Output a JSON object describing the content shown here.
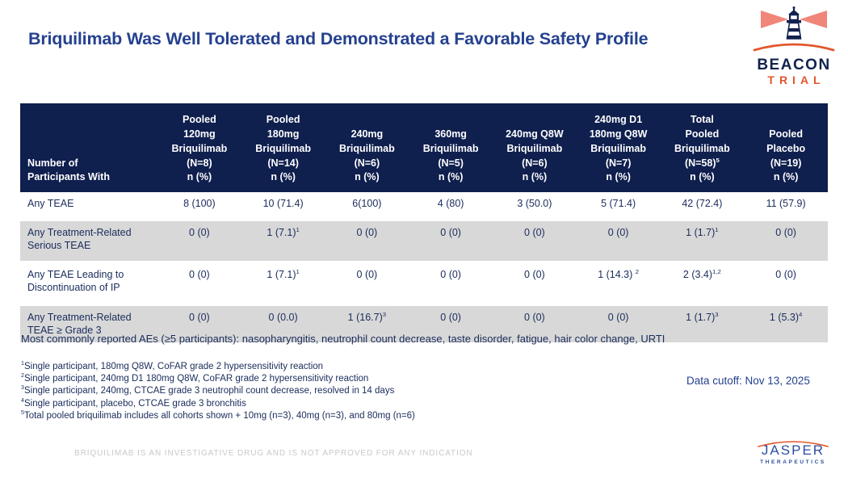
{
  "slide": {
    "title": "Briquilimab Was Well Tolerated and Demonstrated a Favorable Safety Profile",
    "data_cutoff": "Data cutoff: Nov 13, 2025",
    "disclaimer": "BRIQUILIMAB IS AN INVESTIGATIVE DRUG AND IS NOT APPROVED FOR ANY INDICATION"
  },
  "logos": {
    "beacon": {
      "icon": "lighthouse-icon",
      "line1": "BEACON",
      "line2": "TRIAL"
    },
    "jasper": {
      "icon": "arc-swoosh-icon",
      "name": "JASPER",
      "sub": "THERAPEUTICS"
    }
  },
  "colors": {
    "title_blue": "#25418F",
    "header_navy": "#0F1F4E",
    "body_text_navy": "#1A2C5B",
    "row_gray": "#D8D8D8",
    "accent_orange": "#E2572B",
    "beam_red": "#F0857A",
    "disclaimer_gray": "#C9C9C9"
  },
  "table": {
    "header": {
      "row_label": "Number of\nParticipants With",
      "columns": [
        "Pooled\n120mg\nBriquilimab\n(N=8)\nn (%)",
        "Pooled\n180mg\nBriquilimab\n(N=14)\nn (%)",
        "240mg\nBriquilimab\n(N=6)\nn (%)",
        "360mg\nBriquilimab\n(N=5)\nn (%)",
        "240mg Q8W\nBriquilimab\n(N=6)\nn (%)",
        "240mg D1\n180mg Q8W\nBriquilimab\n(N=7)\nn (%)",
        "Total\nPooled\nBriquilimab\n(N=58)^{5}\nn (%)",
        "Pooled\nPlacebo\n(N=19)\nn (%)"
      ]
    },
    "rows": [
      {
        "label": "Any TEAE",
        "values": [
          "8 (100)",
          "10 (71.4)",
          "6(100)",
          "4 (80)",
          "3 (50.0)",
          "5 (71.4)",
          "42 (72.4)",
          "11 (57.9)"
        ]
      },
      {
        "label": "Any Treatment-Related\nSerious TEAE",
        "values": [
          "0 (0)",
          "1 (7.1)^{1}",
          "0 (0)",
          "0 (0)",
          "0 (0)",
          "0 (0)",
          "1 (1.7)^{1}",
          "0 (0)"
        ]
      },
      {
        "label": "Any TEAE Leading to\nDiscontinuation of IP",
        "values": [
          "0 (0)",
          "1 (7.1)^{1}",
          "0 (0)",
          "0 (0)",
          "0 (0)",
          "1 (14.3) ^{2}",
          "2 (3.4)^{1,2}",
          "0 (0)"
        ]
      },
      {
        "label": "Any Treatment-Related\nTEAE ≥ Grade 3",
        "values": [
          "0 (0)",
          "0 (0.0)",
          "1 (16.7)^{3}",
          "0 (0)",
          "0 (0)",
          "0 (0)",
          "1 (1.7)^{3}",
          "1 (5.3)^{4}"
        ]
      }
    ]
  },
  "notes": {
    "common_aes": "Most commonly reported AEs (≥5 participants): nasopharyngitis, neutrophil count decrease, taste disorder, fatigue, hair color change, URTI",
    "footnotes": [
      "^{1}Single participant, 180mg Q8W, CoFAR grade 2 hypersensitivity reaction",
      "^{2}Single participant, 240mg D1 180mg Q8W, CoFAR grade 2 hypersensitivity reaction",
      "^{3}Single participant, 240mg, CTCAE grade 3 neutrophil count decrease, resolved in 14 days",
      "^{4}Single participant, placebo, CTCAE grade 3 bronchitis",
      "^{5}Total pooled briquilimab includes all cohorts shown + 10mg (n=3), 40mg (n=3), and 80mg (n=6)"
    ]
  }
}
